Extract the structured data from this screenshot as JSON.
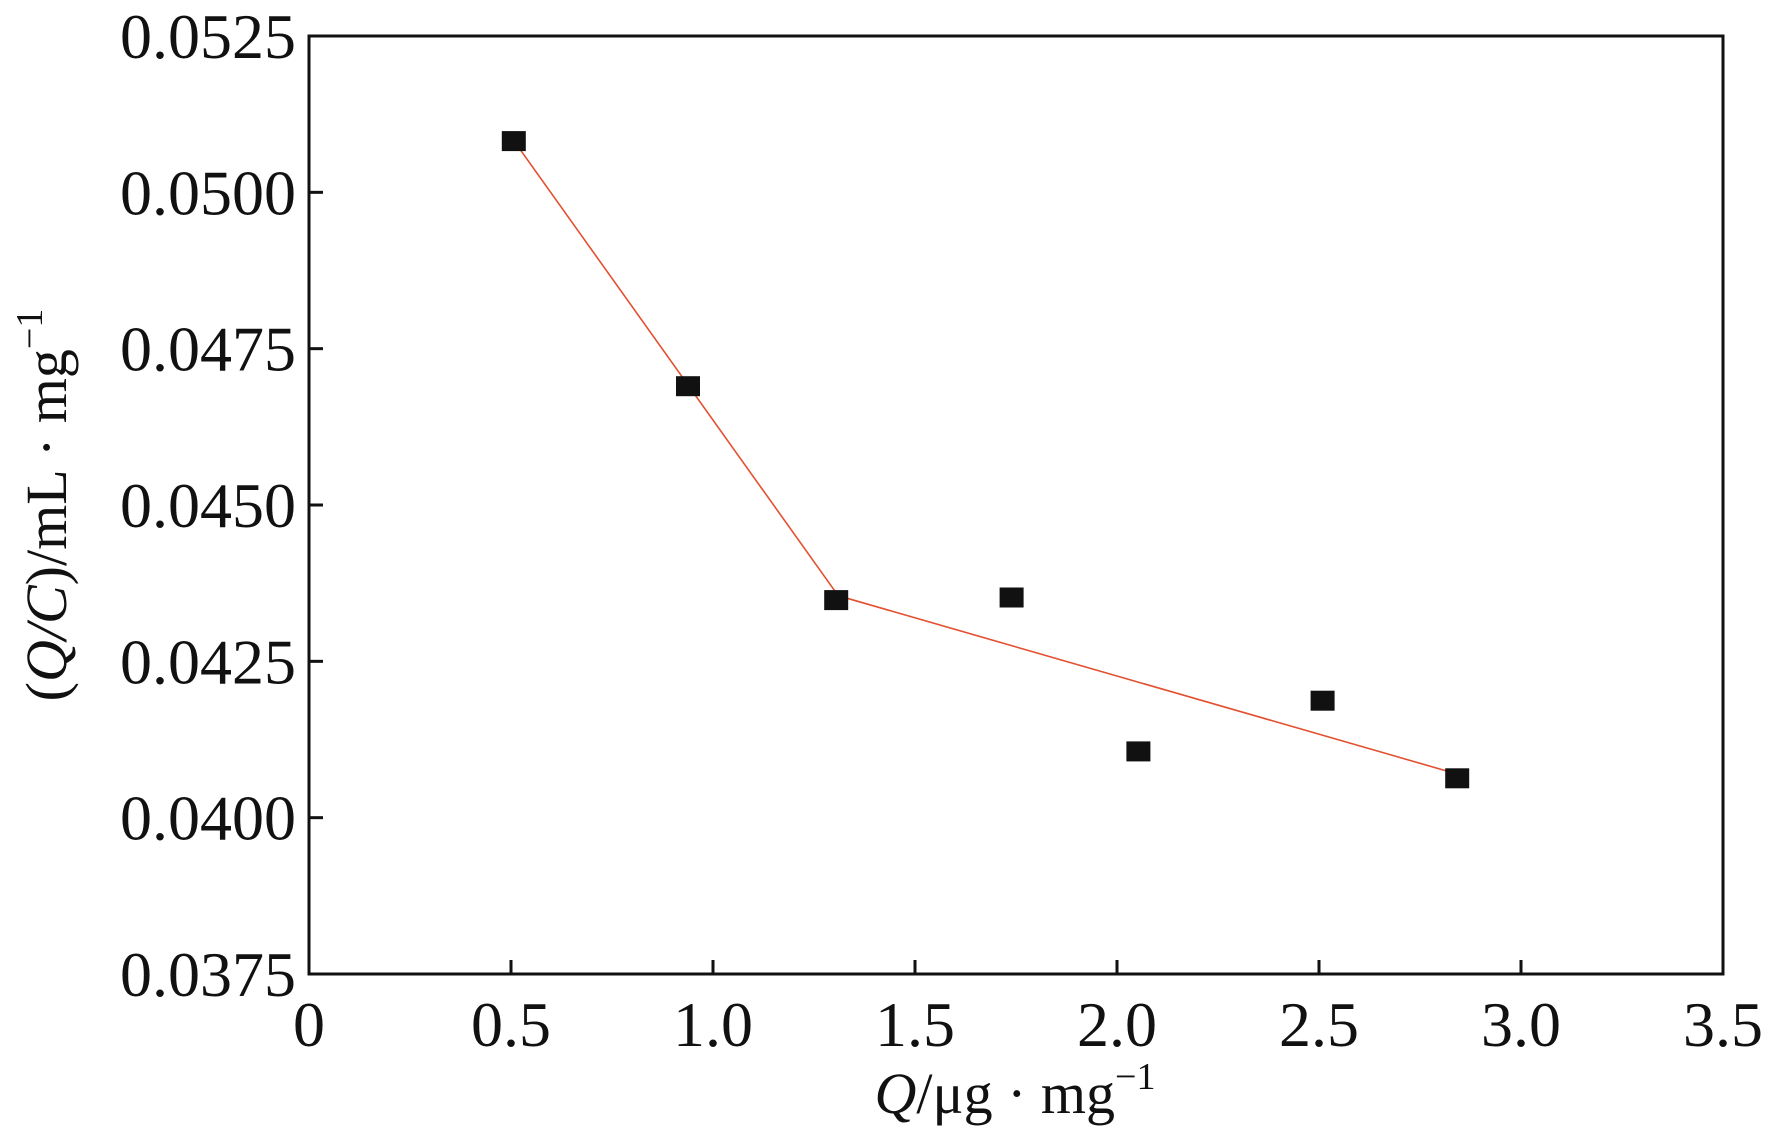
{
  "chart_data": {
    "type": "scatter",
    "title": "",
    "xlabel": {
      "italic": "Q",
      "text": "/μg · mg",
      "sup": "−1"
    },
    "ylabel": {
      "open": "(",
      "italic": "Q/C",
      "text": ")/mL · mg",
      "sup": "−1"
    },
    "xlim": [
      0,
      3.5
    ],
    "ylim": [
      0.0375,
      0.0525
    ],
    "x_ticks": [
      0,
      0.5,
      1.0,
      1.5,
      2.0,
      2.5,
      3.0,
      3.5
    ],
    "x_tick_labels": [
      "0",
      "0.5",
      "1.0",
      "1.5",
      "2.0",
      "2.5",
      "3.0",
      "3.5"
    ],
    "y_ticks": [
      0.0375,
      0.04,
      0.0425,
      0.045,
      0.0475,
      0.05,
      0.0525
    ],
    "y_tick_labels": [
      "0.0375",
      "0.0400",
      "0.0425",
      "0.0450",
      "0.0475",
      "0.0500",
      "0.0525"
    ],
    "grid": false,
    "series": [
      {
        "color": "#111111",
        "x": [
          0.507,
          0.938,
          1.305,
          1.739,
          2.053,
          2.509,
          2.842
        ],
        "y": [
          0.05082,
          0.0469,
          0.04348,
          0.04352,
          0.04106,
          0.04187,
          0.04063
        ]
      }
    ],
    "fit_lines": [
      {
        "color": "#e3502f",
        "x": [
          0.51,
          1.31
        ],
        "y": [
          0.0508,
          0.04355
        ]
      },
      {
        "color": "#e3502f",
        "x": [
          1.31,
          2.83
        ],
        "y": [
          0.04355,
          0.04072
        ]
      }
    ]
  }
}
